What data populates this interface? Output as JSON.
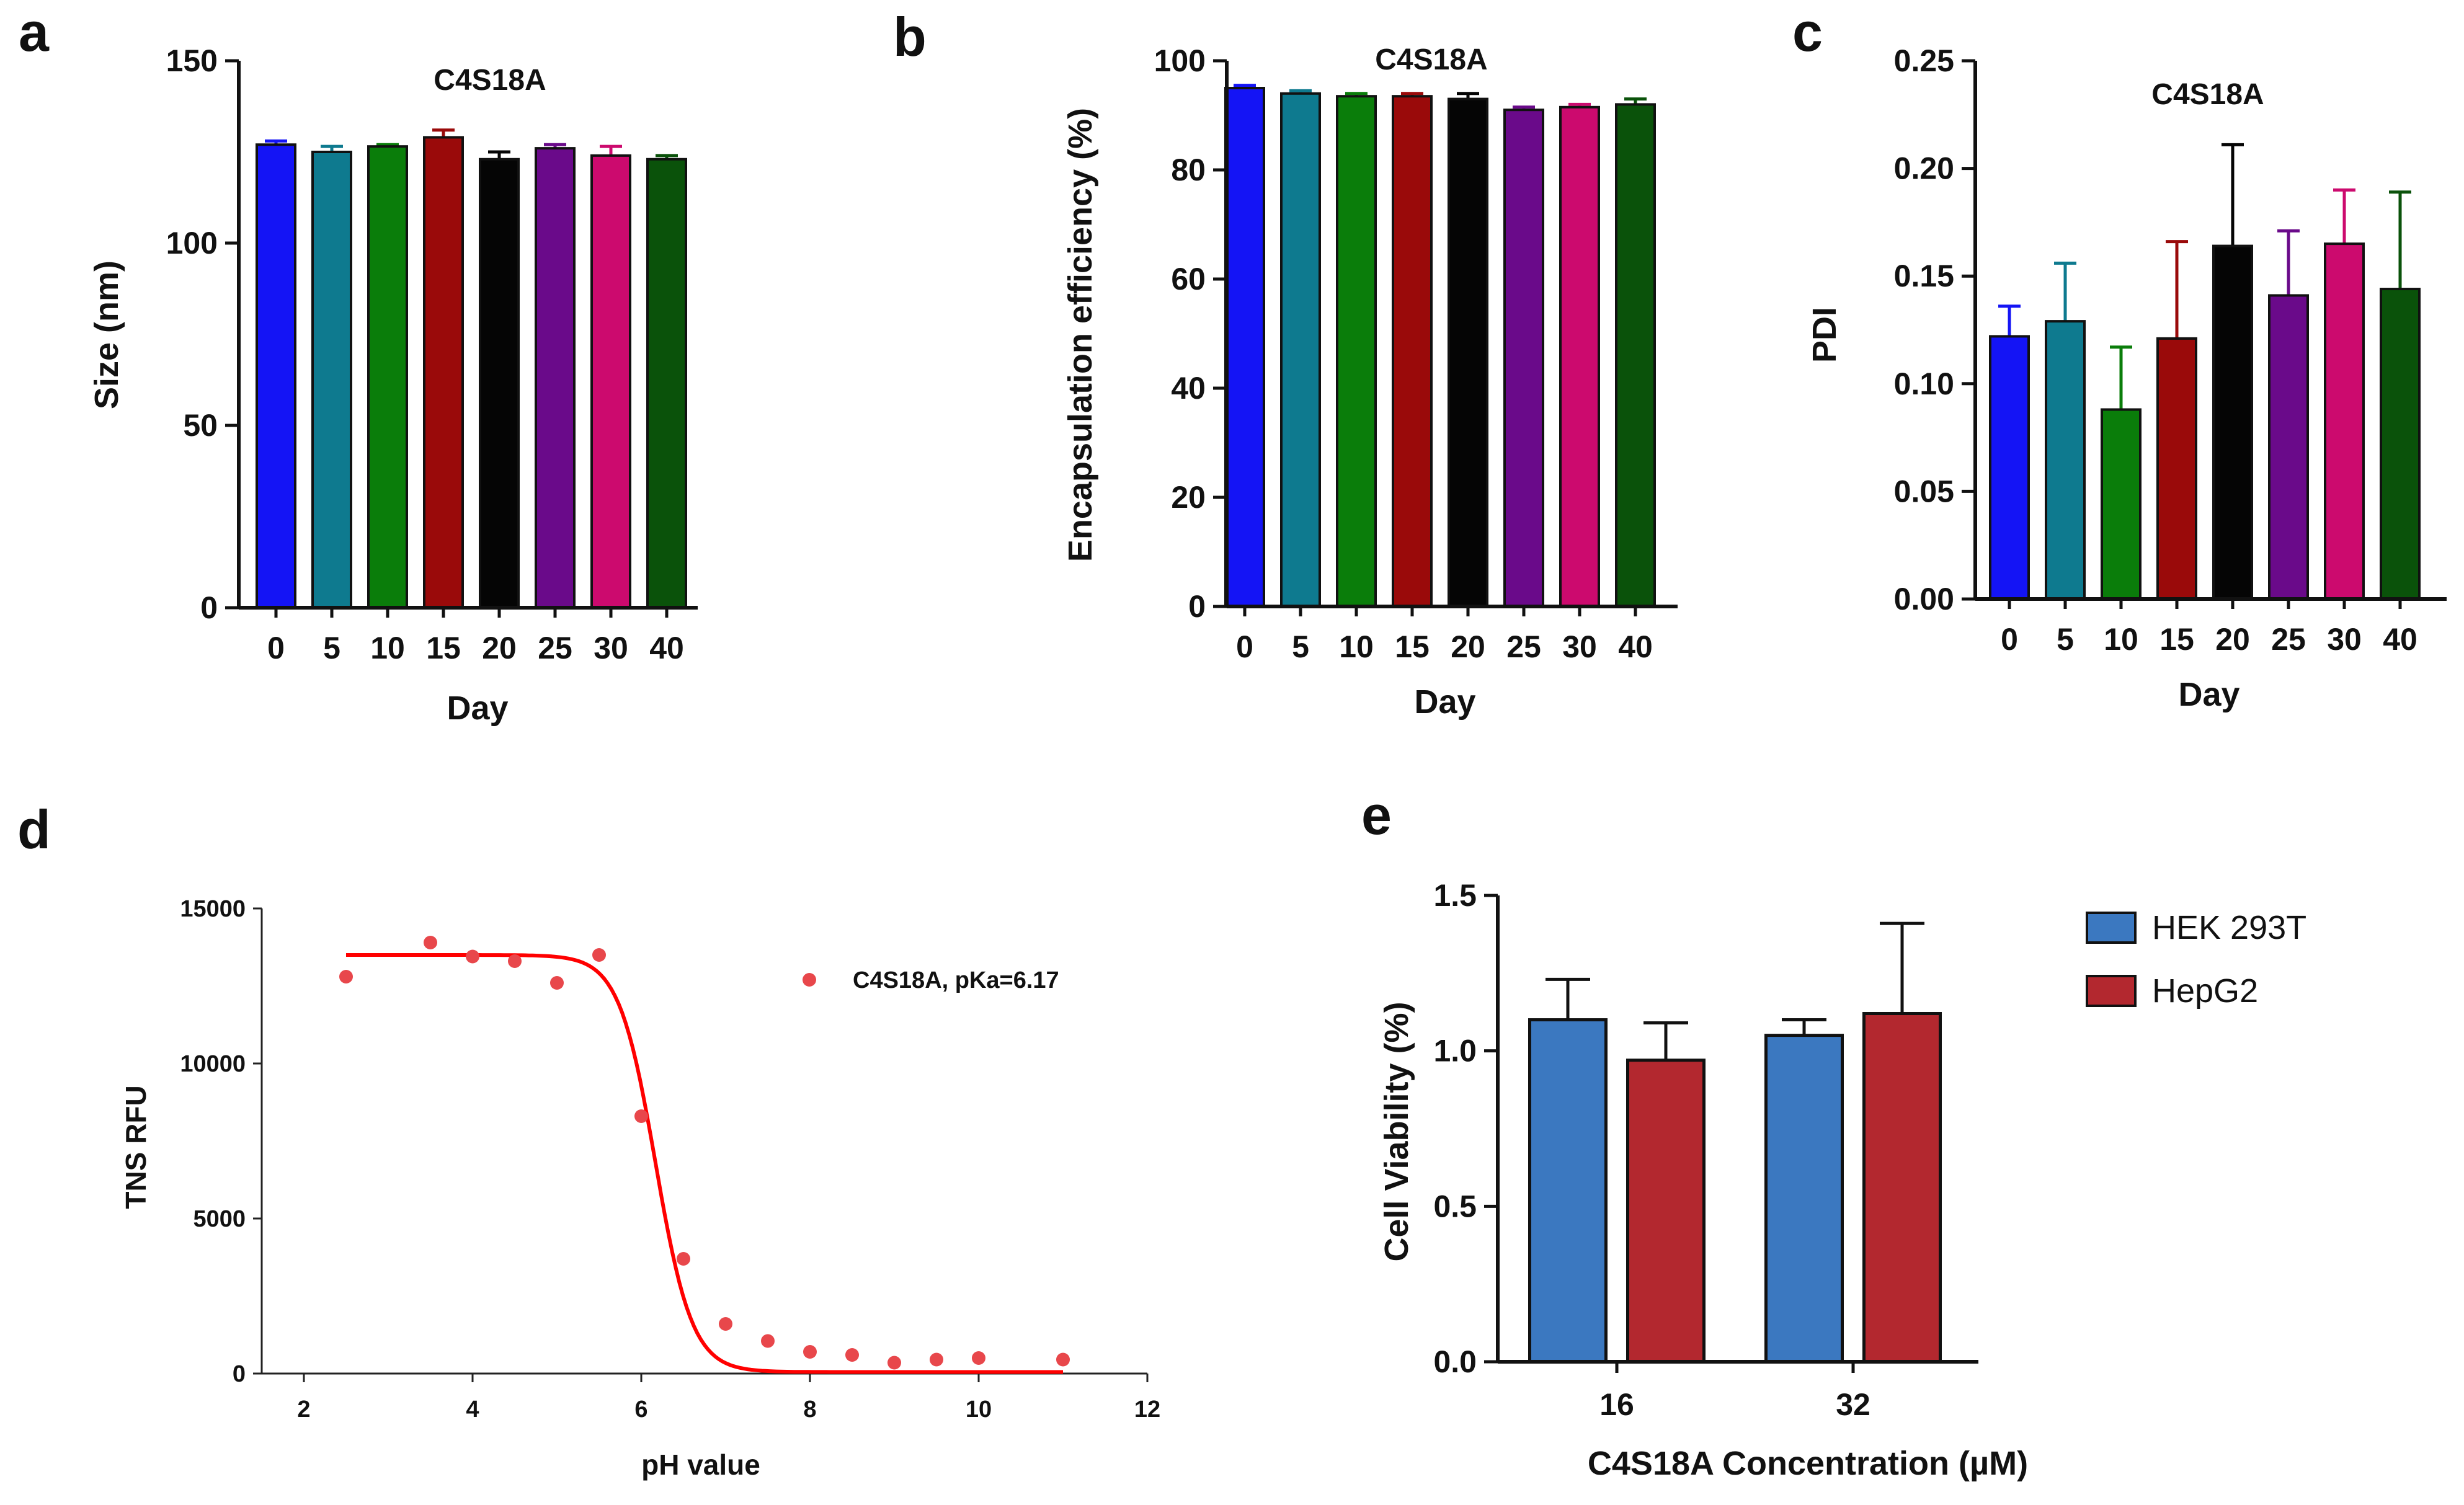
{
  "figure": {
    "panels": [
      "a",
      "b",
      "c",
      "d",
      "e"
    ]
  },
  "colors": {
    "day_bars": [
      "#1414f5",
      "#0e7a8f",
      "#0a7d0a",
      "#9a0a0a",
      "#050505",
      "#6a0a8a",
      "#cc0a6e",
      "#0a520a"
    ],
    "pka_curve": "#ff0000",
    "pka_points": "#e8474b",
    "hek293t": "#3b78c0",
    "hepg2": "#b3282f"
  },
  "chart_data": [
    {
      "id": "a",
      "type": "bar",
      "title": "C4S18A",
      "xlabel": "Day",
      "ylabel": "Size (nm)",
      "categories": [
        "0",
        "5",
        "10",
        "15",
        "20",
        "25",
        "30",
        "40"
      ],
      "values": [
        127,
        125,
        126.5,
        129,
        123,
        126,
        124,
        123
      ],
      "errors": [
        1,
        1.5,
        0.5,
        2,
        2,
        1,
        2.5,
        1
      ],
      "ylim": [
        0,
        150
      ],
      "yticks": [
        "0",
        "50",
        "100",
        "150"
      ]
    },
    {
      "id": "b",
      "type": "bar",
      "title": "C4S18A",
      "xlabel": "Day",
      "ylabel": "Encapsulation efficiency (%)",
      "categories": [
        "0",
        "5",
        "10",
        "15",
        "20",
        "25",
        "30",
        "40"
      ],
      "values": [
        95,
        94,
        93.5,
        93.5,
        93,
        91,
        91.5,
        92
      ],
      "errors": [
        0.5,
        0.5,
        0.5,
        0.5,
        1,
        0.5,
        0.5,
        1
      ],
      "ylim": [
        0,
        100
      ],
      "yticks": [
        "0",
        "20",
        "40",
        "60",
        "80",
        "100"
      ]
    },
    {
      "id": "c",
      "type": "bar",
      "title": "C4S18A",
      "xlabel": "Day",
      "ylabel": "PDI",
      "categories": [
        "0",
        "5",
        "10",
        "15",
        "20",
        "25",
        "30",
        "40"
      ],
      "values": [
        0.122,
        0.129,
        0.088,
        0.121,
        0.164,
        0.141,
        0.165,
        0.144
      ],
      "errors": [
        0.014,
        0.027,
        0.029,
        0.045,
        0.047,
        0.03,
        0.025,
        0.045
      ],
      "ylim": [
        0,
        0.25
      ],
      "yticks": [
        "0.00",
        "0.05",
        "0.10",
        "0.15",
        "0.20",
        "0.25"
      ]
    },
    {
      "id": "d",
      "type": "scatter",
      "xlabel": "pH value",
      "ylabel": "TNS RFU",
      "legend": "C4S18A, pKa=6.17",
      "x": [
        2.5,
        3.5,
        4,
        4.5,
        5,
        5.5,
        6,
        6.5,
        7,
        7.5,
        8,
        8.5,
        9,
        9.5,
        10,
        11
      ],
      "y": [
        12800,
        13900,
        13450,
        13300,
        12600,
        13500,
        8300,
        3700,
        1600,
        1050,
        700,
        600,
        350,
        450,
        500,
        450
      ],
      "fit": {
        "top": 13500,
        "bottom": 50,
        "pKa": 6.17,
        "hill": 2.0
      },
      "xlim": [
        1.5,
        12
      ],
      "ylim": [
        0,
        15000
      ],
      "xticks": [
        "2",
        "4",
        "6",
        "8",
        "10",
        "12"
      ],
      "yticks": [
        "0",
        "5000",
        "10000",
        "15000"
      ]
    },
    {
      "id": "e",
      "type": "bar",
      "xlabel": "C4S18A Concentration (µM)",
      "ylabel": "Cell Viability (%)",
      "categories": [
        "16",
        "32"
      ],
      "series": [
        {
          "name": "HEK 293T",
          "values": [
            1.1,
            1.05
          ],
          "errors": [
            0.13,
            0.05
          ]
        },
        {
          "name": "HepG2",
          "values": [
            0.97,
            1.12
          ],
          "errors": [
            0.12,
            0.29
          ]
        }
      ],
      "ylim": [
        0,
        1.5
      ],
      "yticks": [
        "0.0",
        "0.5",
        "1.0",
        "1.5"
      ]
    }
  ]
}
